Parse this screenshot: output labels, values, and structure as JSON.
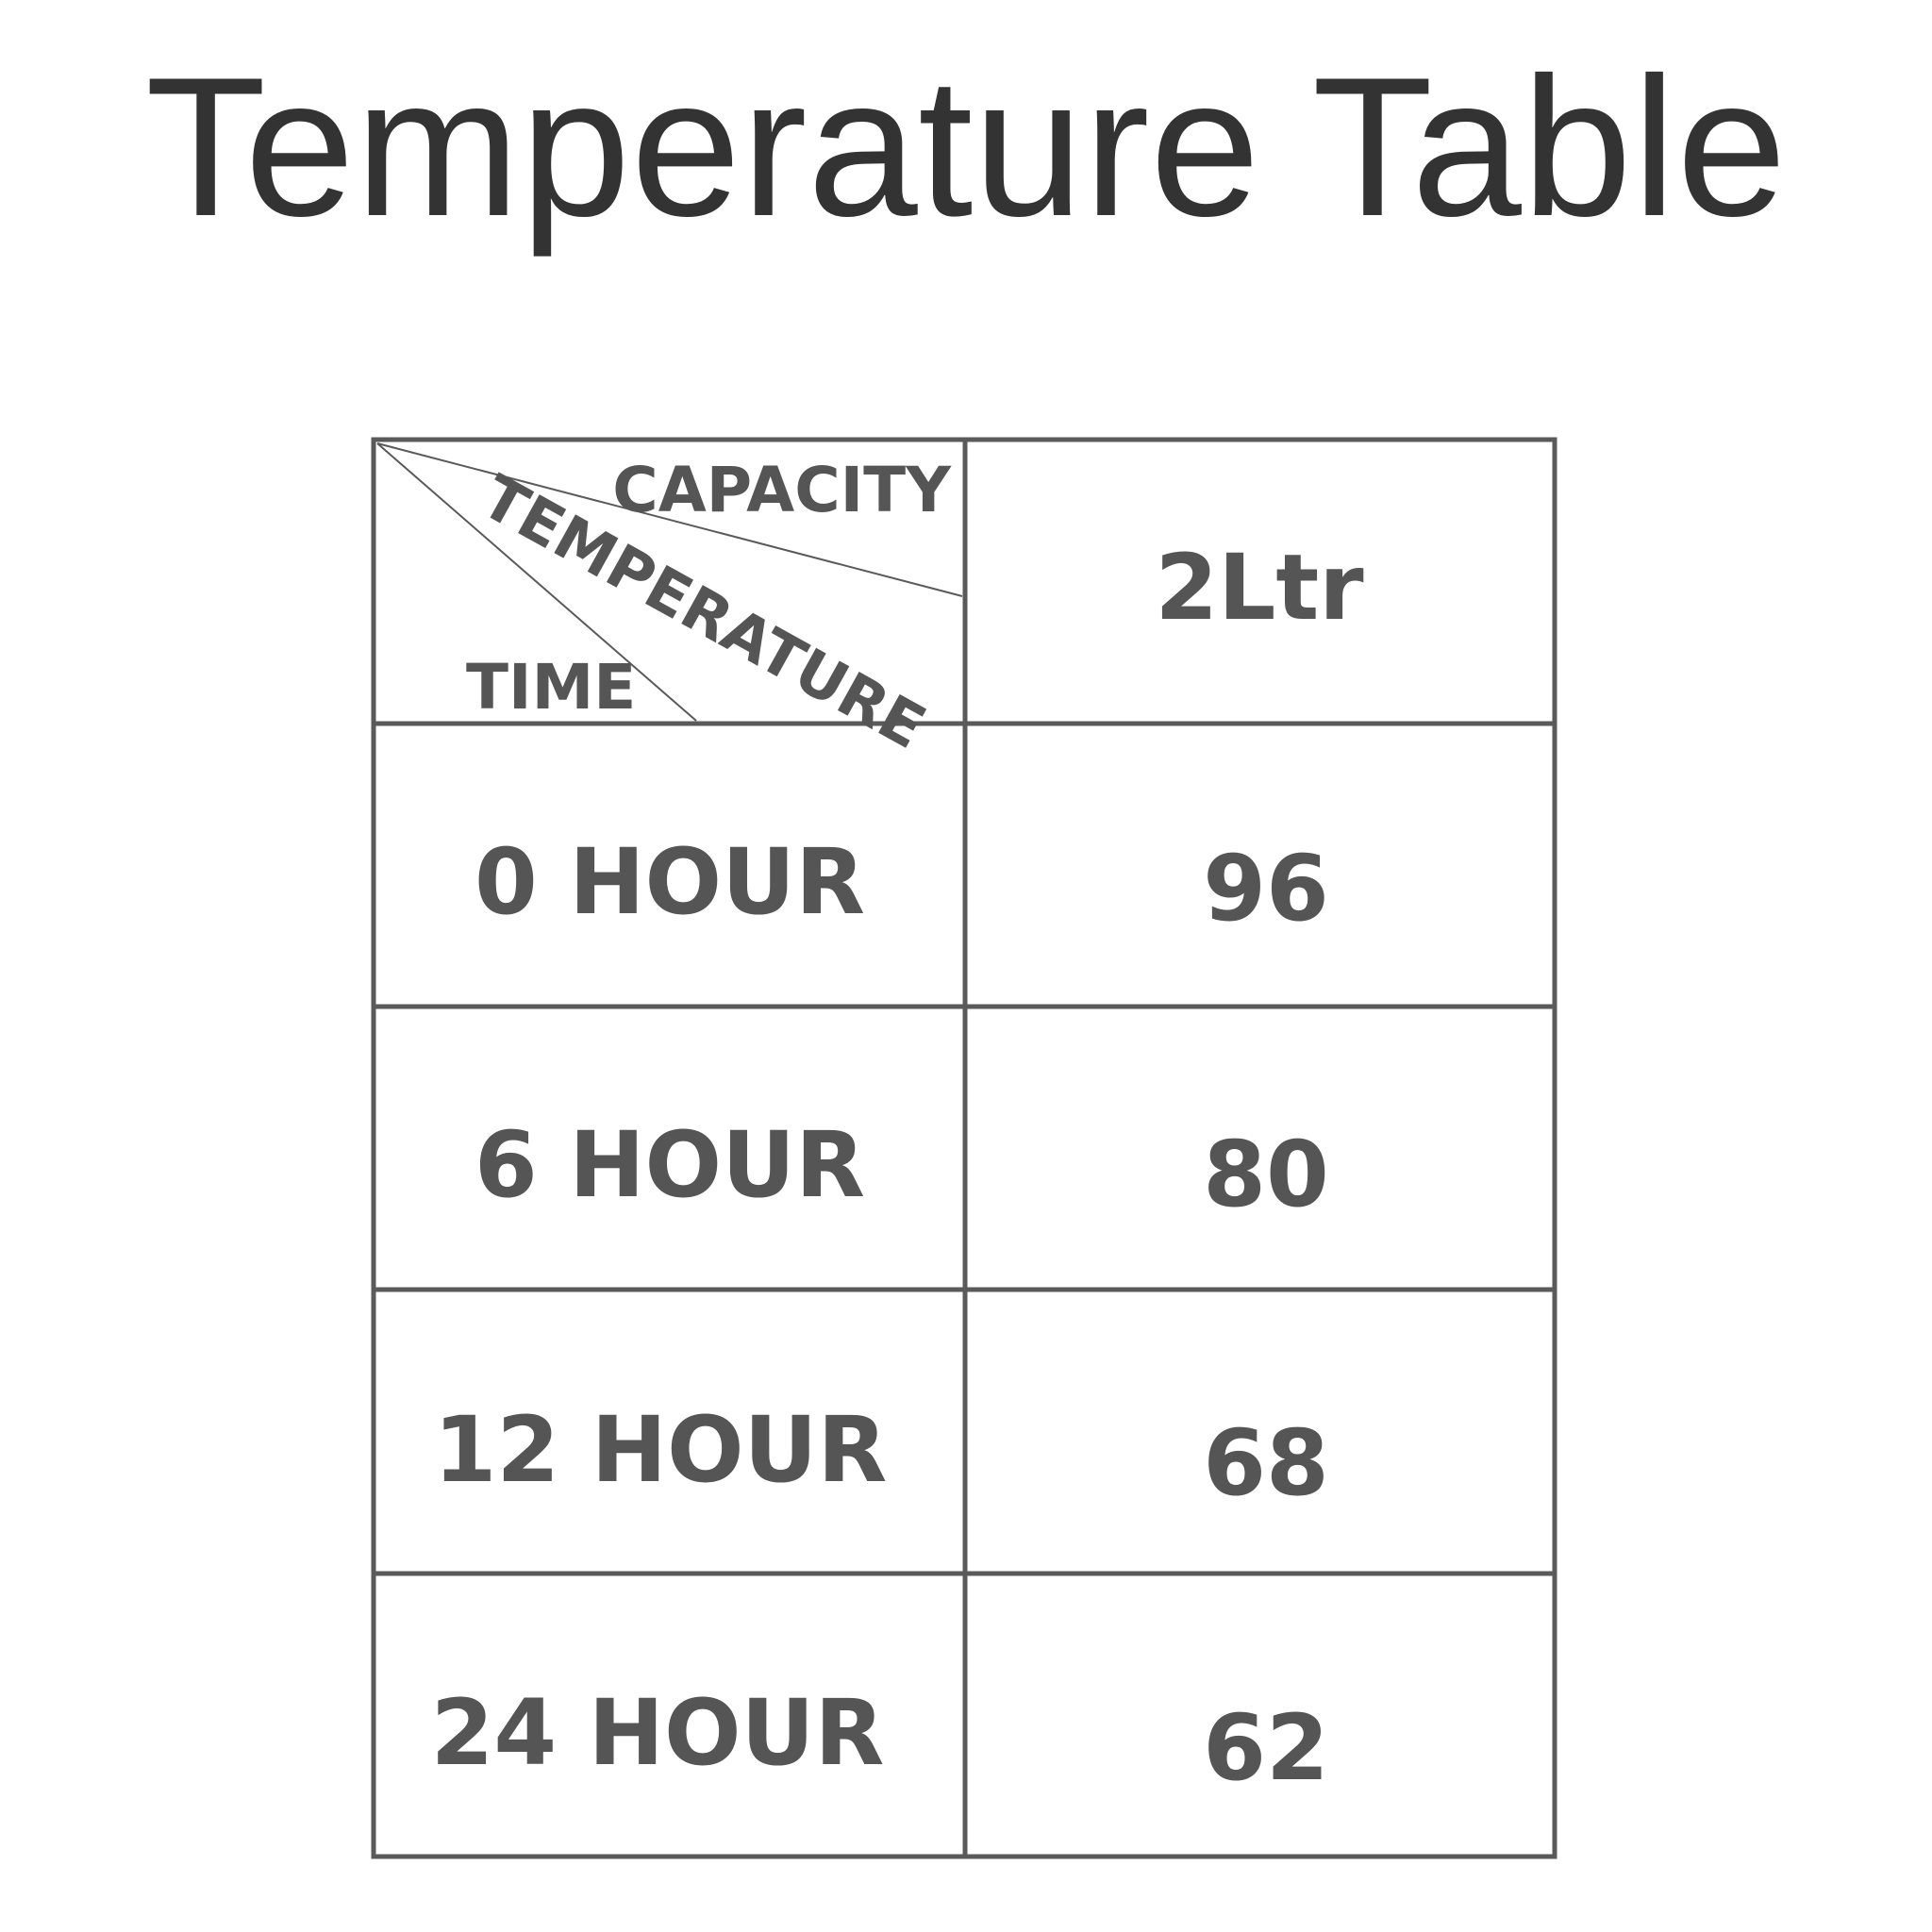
{
  "title": "Temperature Table",
  "colors": {
    "text": "#555555",
    "title": "#333333",
    "border": "#5a5a5a"
  },
  "table": {
    "corner": {
      "top_right": "CAPACITY",
      "middle": "TEMPERATURE",
      "bottom_left": "TIME"
    },
    "column_header": "2Ltr",
    "rows": [
      {
        "time": "0 HOUR",
        "value": "96"
      },
      {
        "time": "6 HOUR",
        "value": "80"
      },
      {
        "time": "12 HOUR",
        "value": "68"
      },
      {
        "time": "24 HOUR",
        "value": "62"
      }
    ]
  }
}
